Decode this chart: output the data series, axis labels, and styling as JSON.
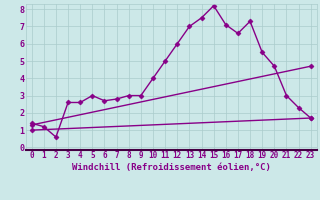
{
  "xlabel": "Windchill (Refroidissement éolien,°C)",
  "background_color": "#cce8e8",
  "line_color": "#880088",
  "axis_bottom_color": "#440044",
  "grid_color": "#aacccc",
  "xlim": [
    -0.5,
    23.5
  ],
  "ylim": [
    -0.15,
    8.3
  ],
  "xtick_labels": [
    "0",
    "1",
    "2",
    "3",
    "4",
    "5",
    "6",
    "7",
    "8",
    "9",
    "10",
    "11",
    "12",
    "13",
    "14",
    "15",
    "16",
    "17",
    "18",
    "19",
    "20",
    "21",
    "22",
    "23"
  ],
  "ytick_labels": [
    "0",
    "1",
    "2",
    "3",
    "4",
    "5",
    "6",
    "7",
    "8"
  ],
  "line1_x": [
    0,
    1,
    2,
    3,
    4,
    5,
    6,
    7,
    8,
    9,
    10,
    11,
    12,
    13,
    14,
    15,
    16,
    17,
    18,
    19,
    20,
    21,
    22,
    23
  ],
  "line1_y": [
    1.4,
    1.2,
    0.6,
    2.6,
    2.6,
    3.0,
    2.7,
    2.8,
    3.0,
    3.0,
    4.0,
    5.0,
    6.0,
    7.0,
    7.5,
    8.2,
    7.1,
    6.6,
    7.3,
    5.5,
    4.7,
    3.0,
    2.3,
    1.7
  ],
  "line2_x": [
    0,
    23
  ],
  "line2_y": [
    1.3,
    4.7
  ],
  "line3_x": [
    0,
    23
  ],
  "line3_y": [
    1.0,
    1.7
  ],
  "marker": "D",
  "markersize": 2.5,
  "linewidth": 1.0,
  "tick_fontsize": 5.5,
  "xlabel_fontsize": 6.5
}
